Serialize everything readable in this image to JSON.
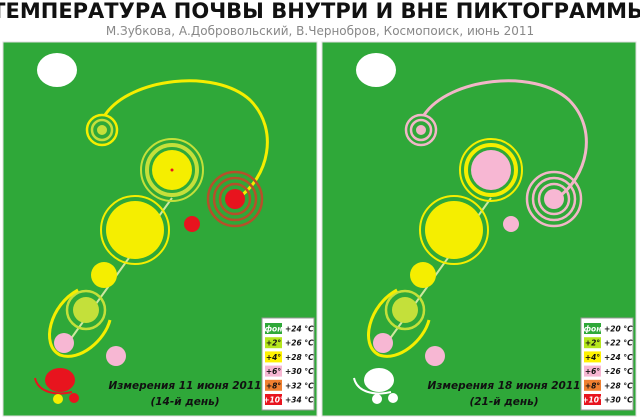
{
  "title": "ТЕМПЕРАТУРА ПОЧВЫ  ВНУТРИ И ВНЕ ПИКТОГРАММЫ",
  "subtitle": "М.Зубкова, А.Добровольский, В.Чернобров, Космопоиск, июнь 2011",
  "panels": [
    {
      "caption": "Измерения 11 июня 2011",
      "day": "(14-й день)",
      "legend": [
        {
          "label": "фон",
          "temp": "+24 °C"
        },
        {
          "label": "+2°",
          "temp": "+26 °C"
        },
        {
          "label": "+4°",
          "temp": "+28 °C"
        },
        {
          "label": "+6°",
          "temp": "+30 °C"
        },
        {
          "label": "+8°",
          "temp": "+32 °C"
        },
        {
          "label": "+10°",
          "temp": "+34 °C"
        }
      ]
    },
    {
      "caption": "Измерения 18 июня 2011",
      "day": "(21-й день)",
      "legend": [
        {
          "label": "фон",
          "temp": "+20 °C"
        },
        {
          "label": "+2°",
          "temp": "+22 °C"
        },
        {
          "label": "+4°",
          "temp": "+24 °C"
        },
        {
          "label": "+6°",
          "temp": "+26 °C"
        },
        {
          "label": "+8°",
          "temp": "+28 °C"
        },
        {
          "label": "+10°",
          "temp": "+30 °C"
        }
      ]
    }
  ]
}
